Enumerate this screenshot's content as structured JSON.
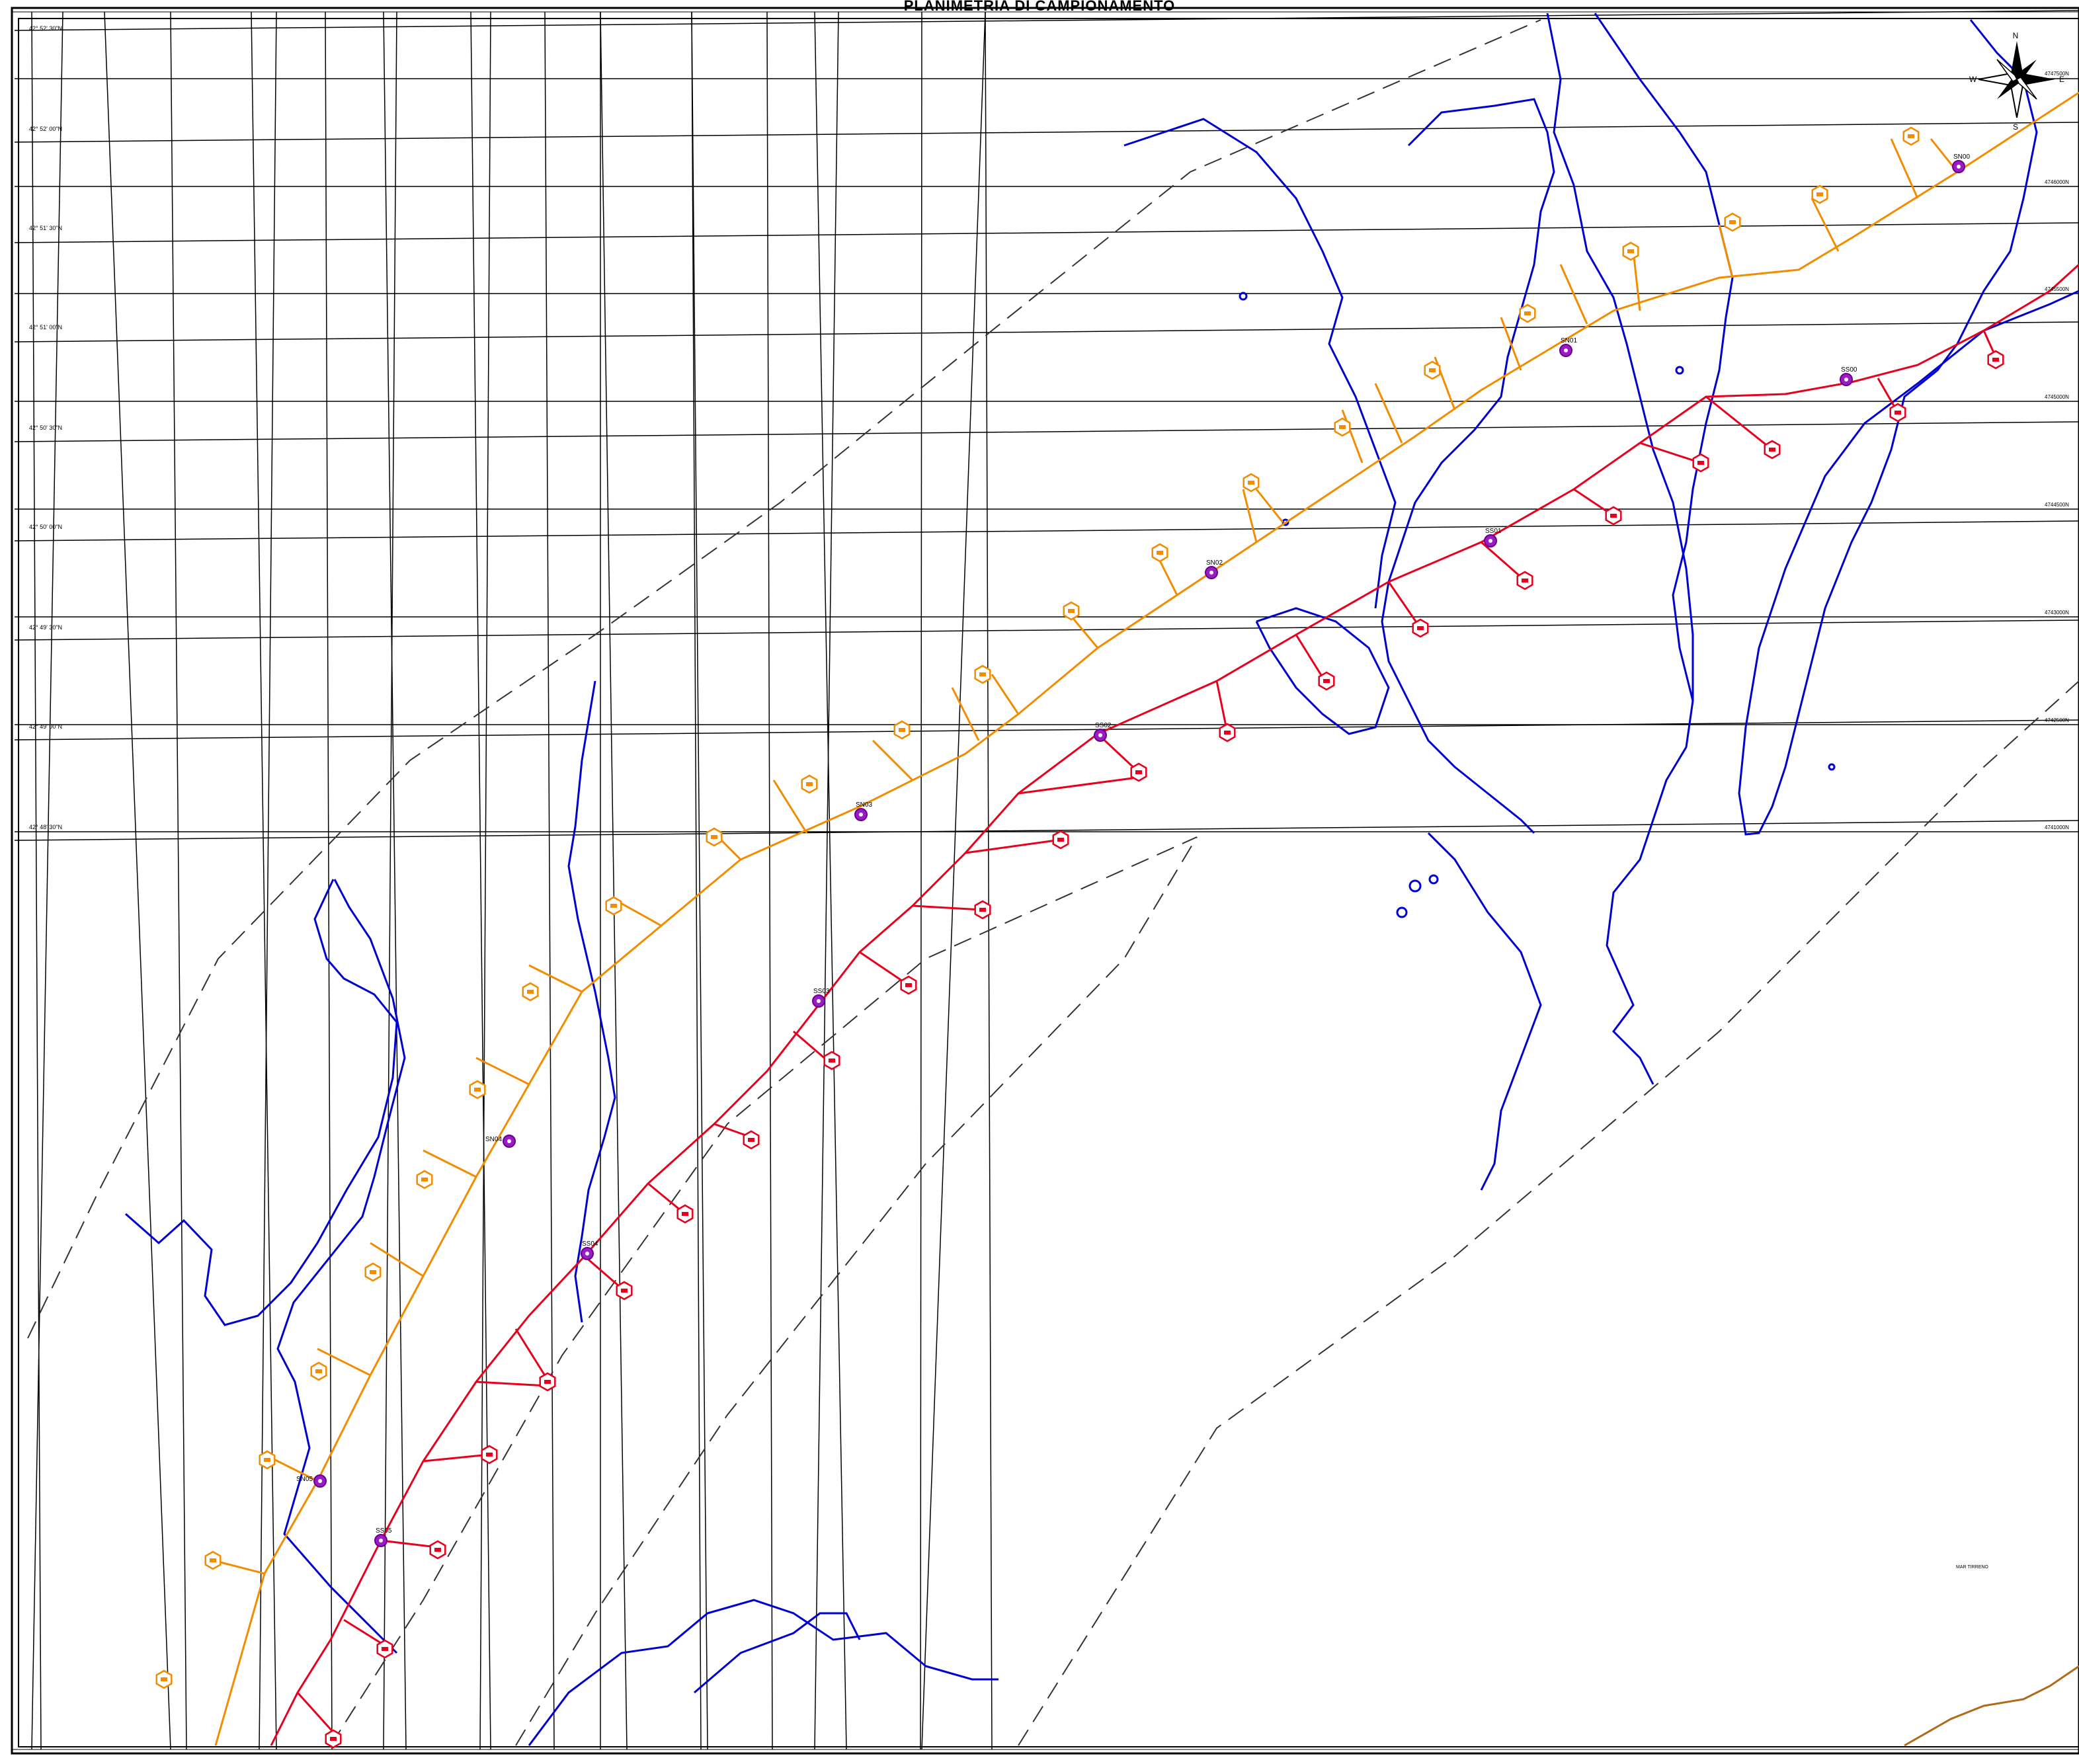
{
  "title": "PLANIMETRIA DI CAMPIONAMENTO",
  "sea_label": "MAR TIRRENO",
  "north_arrow": {
    "n": "N",
    "e": "E",
    "w": "W",
    "s": "S"
  },
  "lat_labels": [
    "42° 52' 30\"N",
    "42° 52' 00\"N",
    "42° 51' 30\"N",
    "42° 51' 00\"N",
    "42° 50' 30\"N",
    "42° 50' 00\"N",
    "42° 49' 30\"N",
    "42° 49' 00\"N",
    "42° 48' 30\"N"
  ],
  "utm_n_labels": [
    "4747500N",
    "4746000N",
    "4745500N",
    "4745000N",
    "4744500N",
    "4743000N",
    "4742500N",
    "4741000N",
    "4740500N"
  ],
  "stations": [
    {
      "id": "SN00"
    },
    {
      "id": "SN01"
    },
    {
      "id": "SN02"
    },
    {
      "id": "SN03"
    },
    {
      "id": "SN04"
    },
    {
      "id": "SN05"
    },
    {
      "id": "SS00"
    },
    {
      "id": "SS01"
    },
    {
      "id": "SS02"
    },
    {
      "id": "SS03"
    },
    {
      "id": "SS04"
    },
    {
      "id": "SS05"
    }
  ],
  "colors": {
    "orange_line": "#f28c00",
    "red_line": "#e8001c",
    "water": "#0000d0",
    "station": "#9b1cc4",
    "grid": "#000000",
    "dashed": "#333333",
    "coast_brown": "#b06a1c"
  },
  "icons": {
    "north_arrow": "compass-rose-icon",
    "station": "station-marker-icon",
    "sample": "sample-hexagon-icon"
  }
}
